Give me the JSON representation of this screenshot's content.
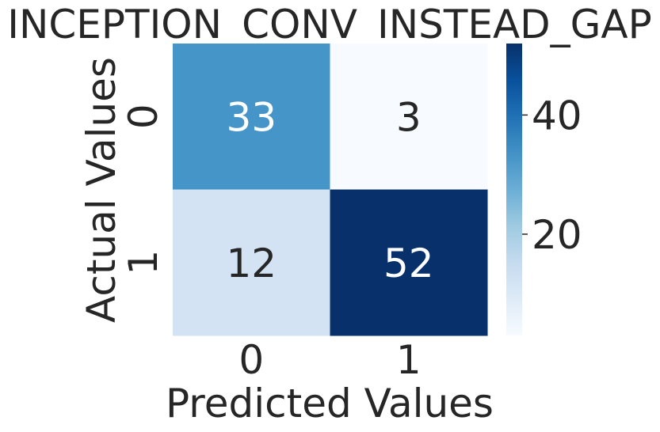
{
  "chart_data": {
    "type": "heatmap",
    "title": "INCEPTION_CONV_INSTEAD_GAP",
    "xlabel": "Predicted Values",
    "ylabel": "Actual Values",
    "x_categories": [
      "0",
      "1"
    ],
    "y_categories": [
      "0",
      "1"
    ],
    "values": [
      [
        33,
        3
      ],
      [
        12,
        52
      ]
    ],
    "colorbar": {
      "min": 3,
      "max": 52,
      "ticks": [
        20,
        40
      ],
      "tick_labels": [
        "20",
        "40"
      ],
      "colormap": "Blues"
    },
    "colors": {
      "low": "#f7fbff",
      "mid": "#6baed6",
      "high": "#08306b",
      "text_dark": "#262626",
      "text_light": "#ffffff"
    }
  }
}
